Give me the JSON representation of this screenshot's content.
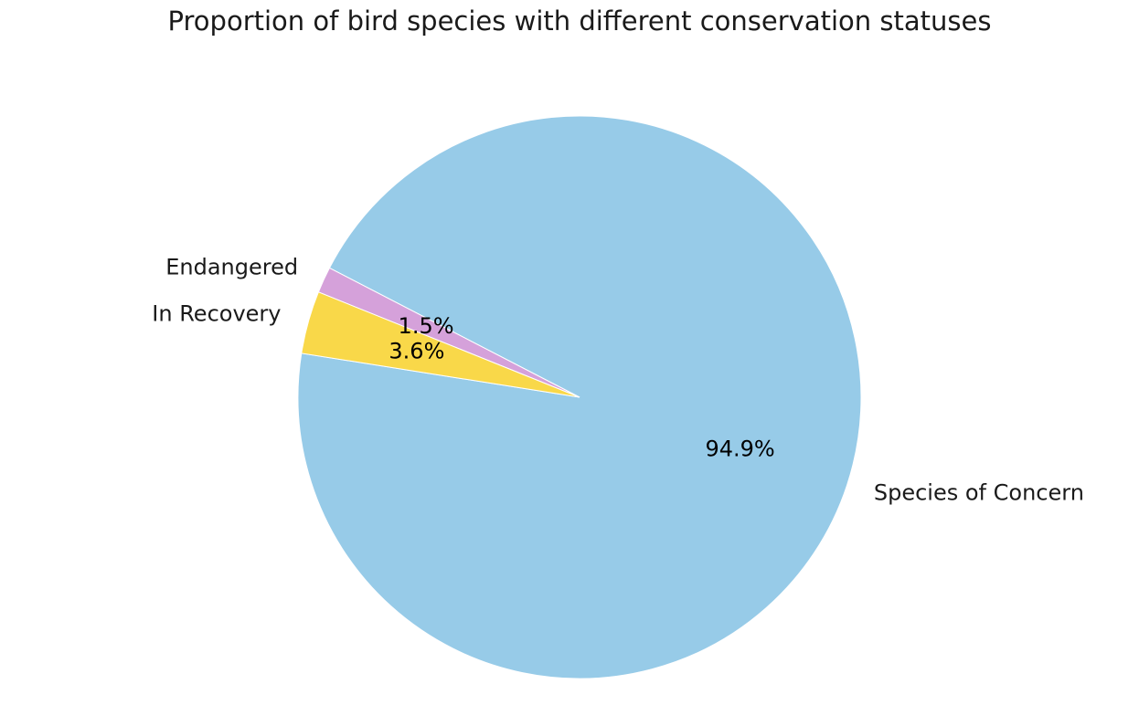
{
  "chart_data": {
    "type": "pie",
    "title": "Proportion of bird species with different conservation statuses",
    "slices": [
      {
        "label": "Species of Concern",
        "value": 94.9,
        "pct_label": "94.9%",
        "color": "#97CBE8"
      },
      {
        "label": "Endangered",
        "value": 1.5,
        "pct_label": "1.5%",
        "color": "#D5A1DA"
      },
      {
        "label": "In Recovery",
        "value": 3.6,
        "pct_label": "3.6%",
        "color": "#F9D849"
      }
    ],
    "start_angle_deg": 171,
    "direction": "counterclockwise",
    "legend": "none"
  }
}
